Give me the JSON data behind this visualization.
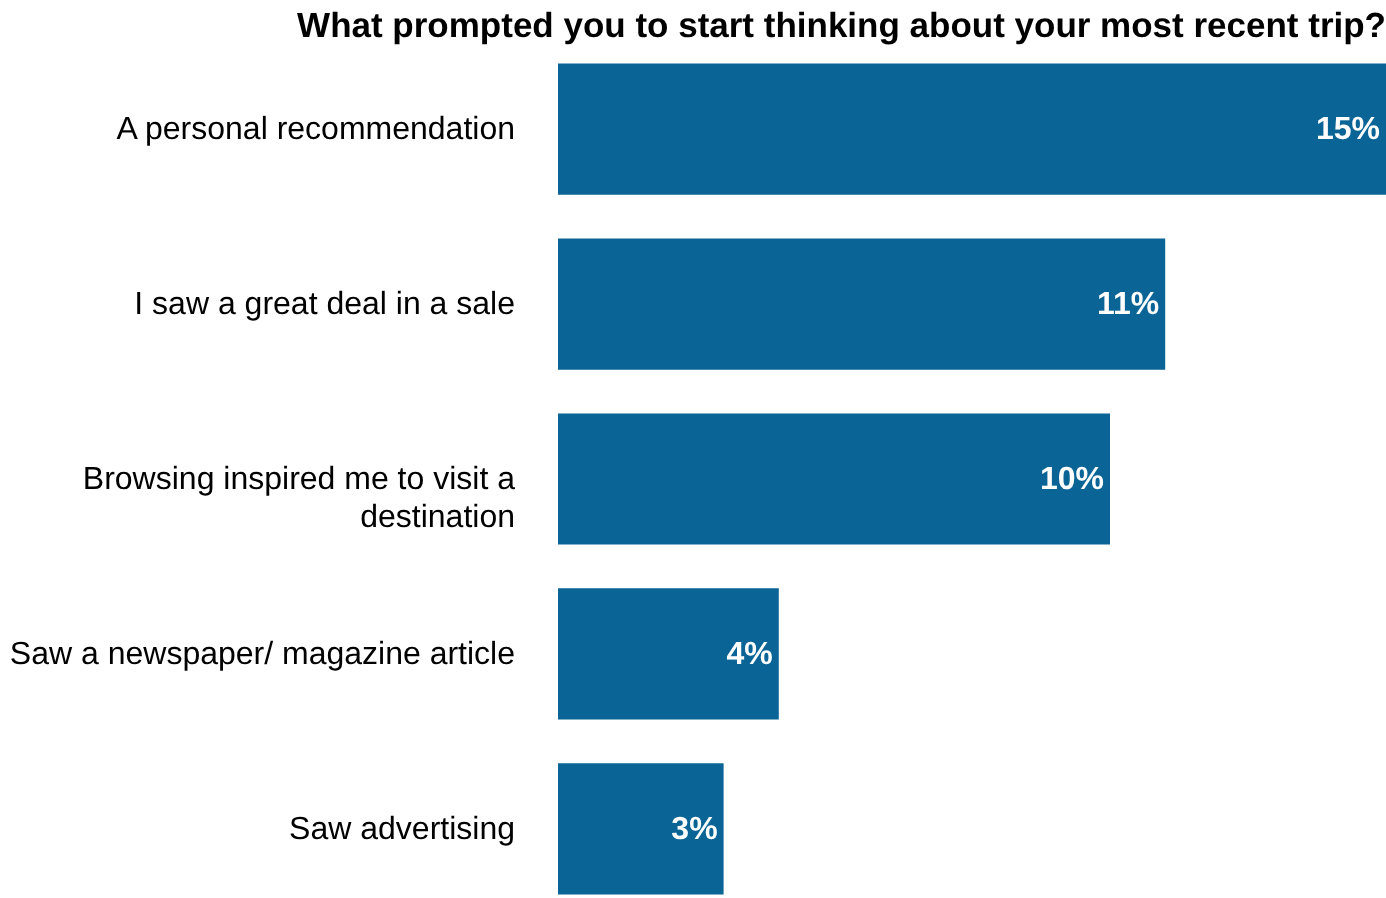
{
  "chart_data": {
    "type": "bar",
    "orientation": "horizontal",
    "title": "What prompted you to start thinking about your most recent trip?",
    "categories": [
      "A personal recommendation",
      "I saw a great deal in a sale",
      "Browsing inspired me to visit a destination",
      "Saw a newspaper/ magazine article",
      "Saw advertising"
    ],
    "values": [
      15,
      11,
      10,
      4,
      3
    ],
    "value_labels": [
      "15%",
      "11%",
      "10%",
      "4%",
      "3%"
    ],
    "color": "#0a6496"
  }
}
